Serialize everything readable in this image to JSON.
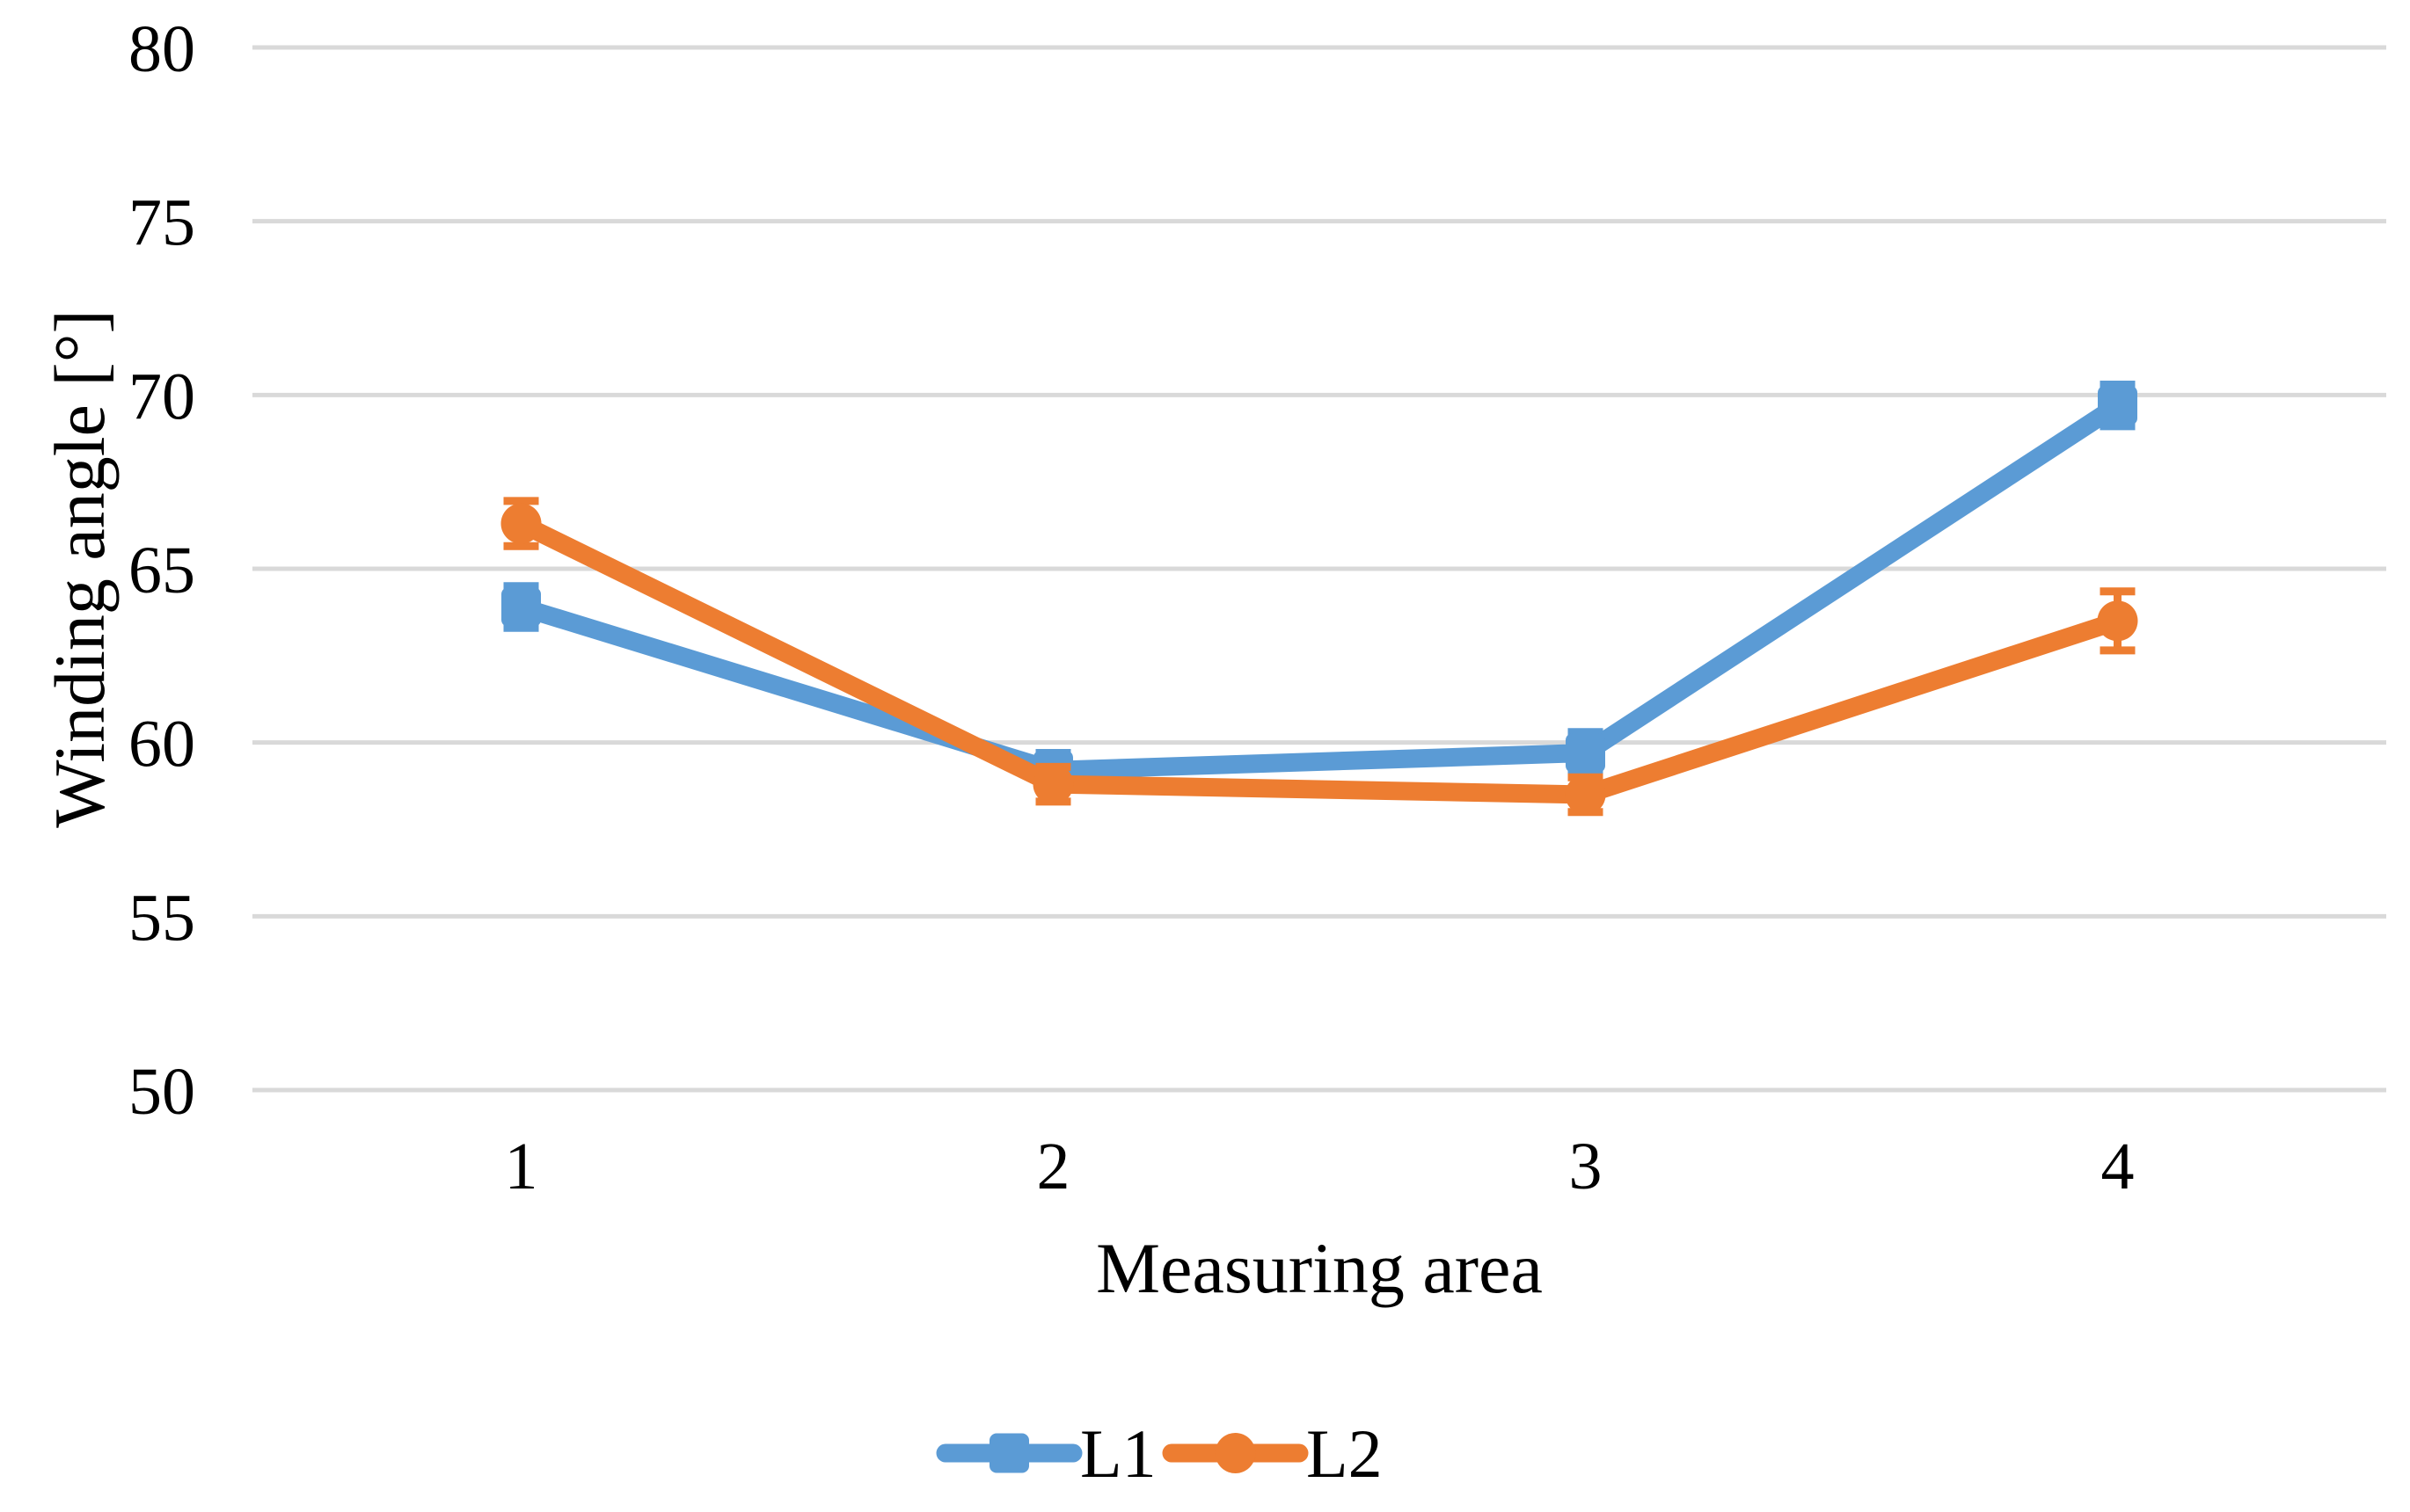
{
  "chart_data": {
    "type": "line",
    "title": "",
    "xlabel": "Measuring area",
    "ylabel": "Winding angle [°]",
    "categories": [
      "1",
      "2",
      "3",
      "4"
    ],
    "y_ticks": [
      50,
      55,
      60,
      65,
      70,
      75,
      80
    ],
    "ylim": [
      50,
      80
    ],
    "grid": "horizontal-only",
    "gridline_color": "#d9d9d9",
    "text_color": "#000000",
    "background_color": "#ffffff",
    "legend_position": "bottom-center",
    "series": [
      {
        "name": "L1",
        "color": "#5b9bd5",
        "marker": "square",
        "values": [
          63.9,
          59.2,
          59.7,
          69.7
        ],
        "error": [
          0.6,
          0.5,
          0.6,
          0.6
        ]
      },
      {
        "name": "L2",
        "color": "#ed7d31",
        "marker": "circle",
        "values": [
          66.3,
          58.8,
          58.5,
          63.5
        ],
        "error": [
          0.65,
          0.5,
          0.5,
          0.85
        ]
      }
    ]
  }
}
